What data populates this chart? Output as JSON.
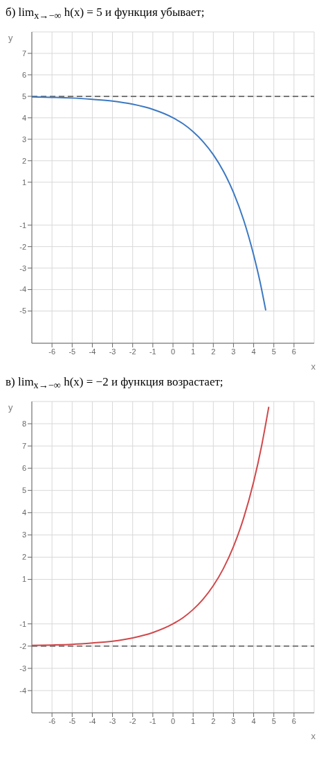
{
  "chart_data": [
    {
      "type": "line",
      "title": "б) lim$_{x→−∞}$ h(x) = 5 и функция убывает;",
      "xlabel": "x",
      "ylabel": "y",
      "xlim": [
        -7,
        7
      ],
      "ylim": [
        -6.5,
        8
      ],
      "xticks": [
        -6,
        -5,
        -4,
        -3,
        -2,
        -1,
        0,
        1,
        2,
        3,
        4,
        5,
        6
      ],
      "yticks": [
        -5,
        -4,
        -3,
        -2,
        -1,
        1,
        2,
        3,
        4,
        5,
        6,
        7
      ],
      "grid": true,
      "marker": "none",
      "line_style": "solid",
      "series": [
        {
          "color": "#3b78c2",
          "x": [
            -7,
            -6,
            -5,
            -4,
            -3,
            -2,
            -1,
            0,
            0.5,
            1,
            1.5,
            2,
            2.5,
            3,
            3.5,
            4,
            4.3,
            4.6
          ],
          "values": [
            4.97,
            4.95,
            4.92,
            4.86,
            4.78,
            4.63,
            4.39,
            4.0,
            3.72,
            3.35,
            2.88,
            2.28,
            1.51,
            0.52,
            -0.75,
            -2.39,
            -3.57,
            -4.97
          ]
        }
      ],
      "ref_lines": [
        {
          "axis": "y",
          "value": 5,
          "color": "#777777",
          "line_style": "dashed"
        }
      ]
    },
    {
      "type": "line",
      "title": "в) lim$_{x→−∞}$ h(x) = −2 и функция возрастает;",
      "xlabel": "x",
      "ylabel": "y",
      "xlim": [
        -7,
        7
      ],
      "ylim": [
        -5,
        9
      ],
      "xticks": [
        -6,
        -5,
        -4,
        -3,
        -2,
        -1,
        0,
        1,
        2,
        3,
        4,
        5,
        6
      ],
      "yticks": [
        -4,
        -3,
        -2,
        -1,
        1,
        2,
        3,
        4,
        5,
        6,
        7,
        8
      ],
      "grid": true,
      "marker": "none",
      "line_style": "solid",
      "series": [
        {
          "color": "#d0474a",
          "x": [
            -7,
            -6,
            -5,
            -4,
            -3,
            -2,
            -1,
            0,
            0.5,
            1,
            1.5,
            2,
            2.5,
            3,
            3.5,
            4,
            4.4,
            4.75
          ],
          "values": [
            -1.97,
            -1.95,
            -1.92,
            -1.86,
            -1.78,
            -1.63,
            -1.39,
            -1,
            -0.72,
            -0.35,
            0.12,
            0.72,
            1.49,
            2.48,
            3.75,
            5.39,
            7.03,
            8.76
          ]
        }
      ],
      "ref_lines": [
        {
          "axis": "y",
          "value": -2,
          "color": "#777777",
          "line_style": "dashed"
        }
      ]
    }
  ]
}
